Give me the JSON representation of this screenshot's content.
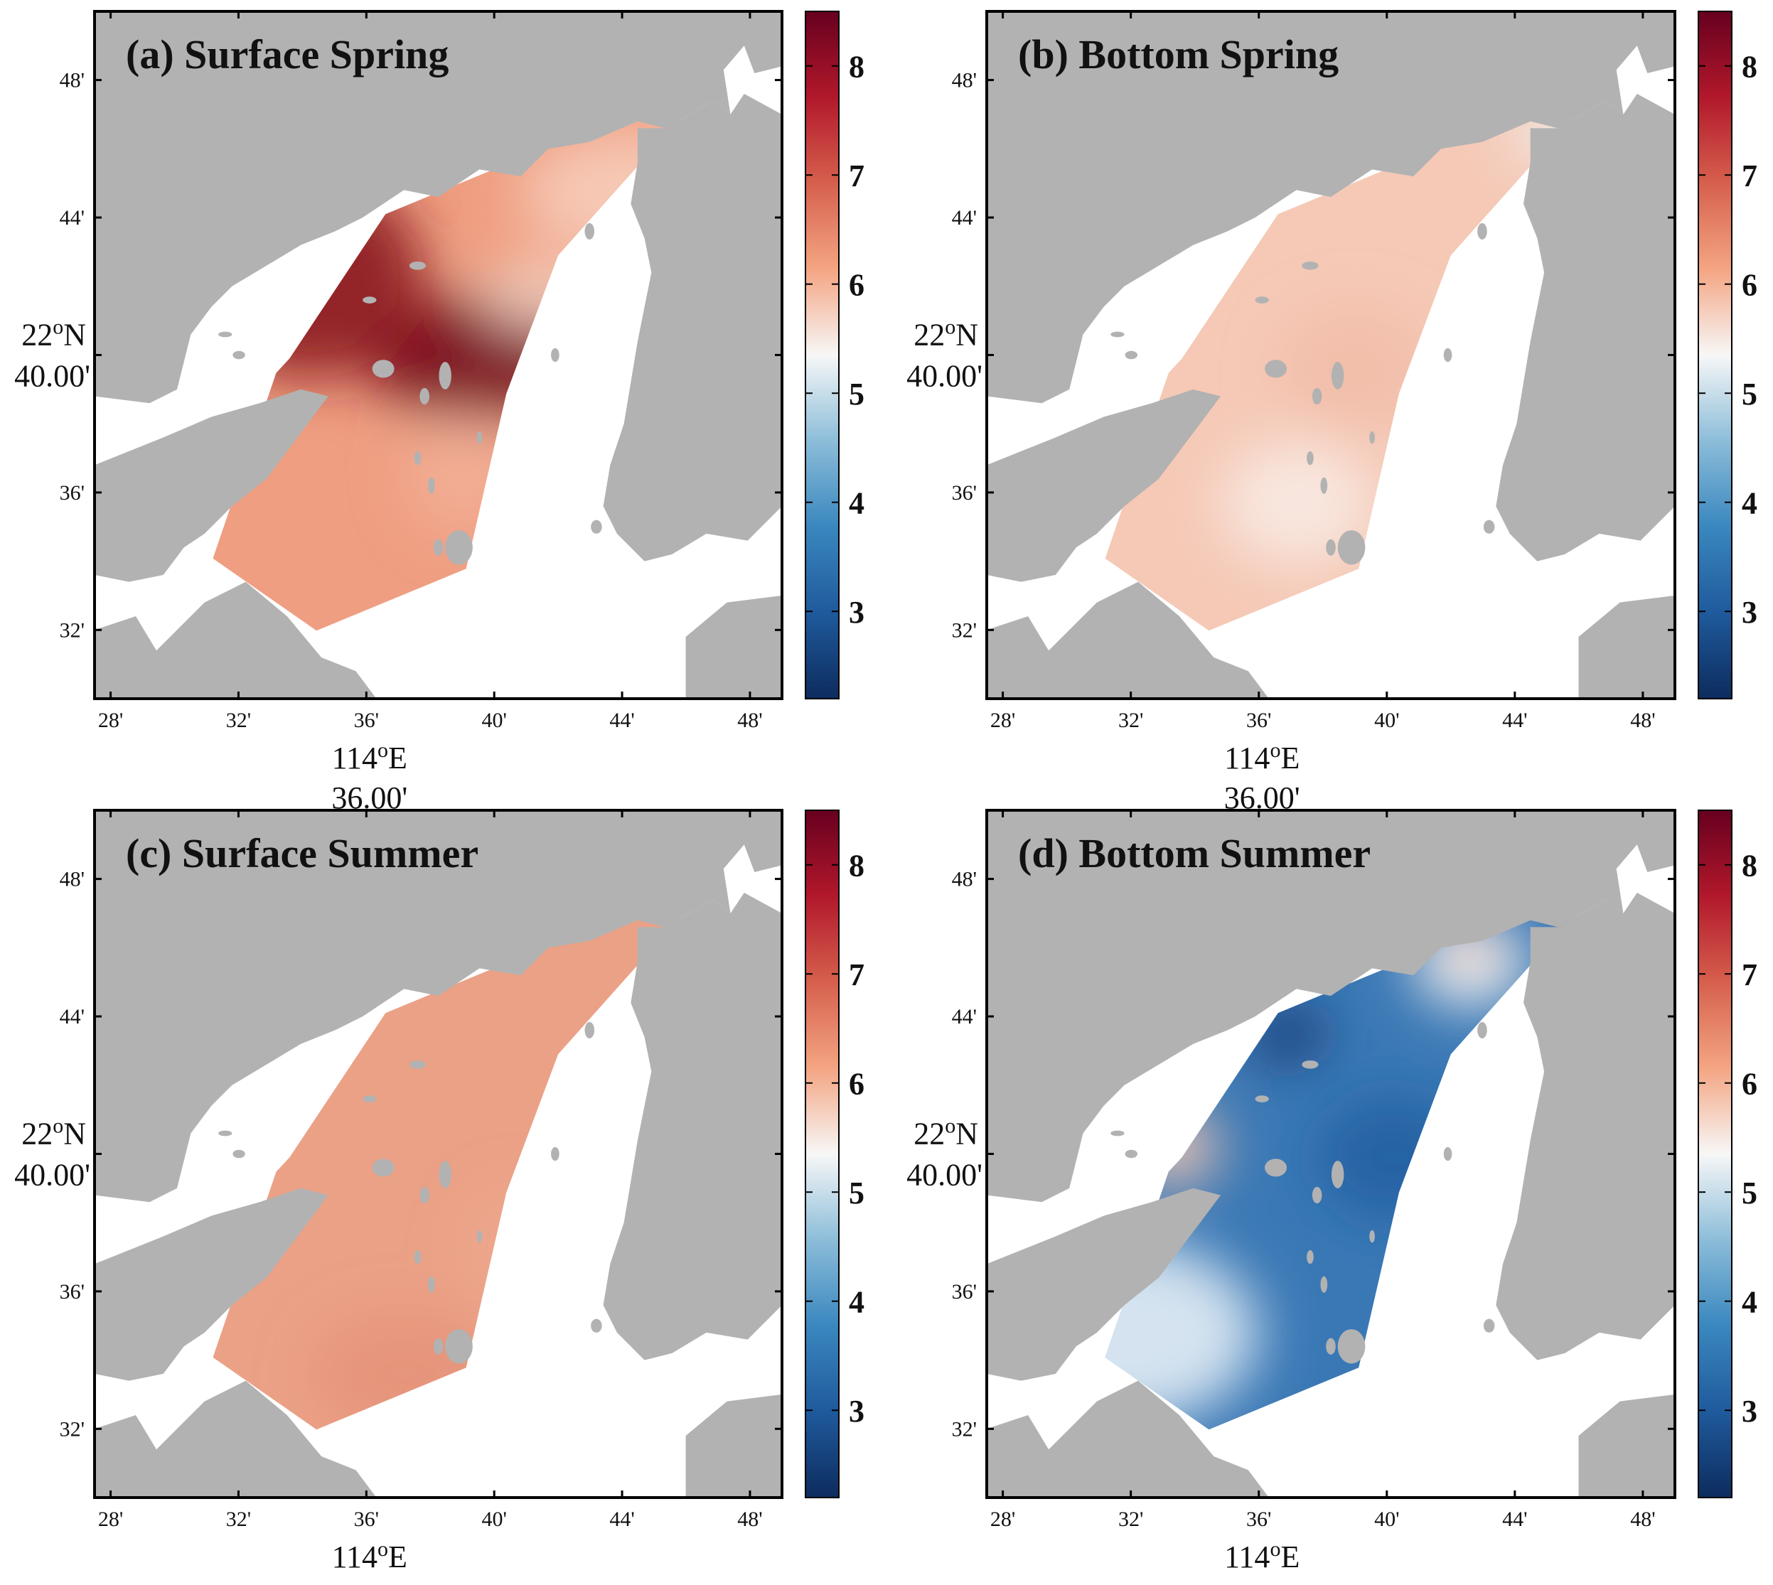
{
  "panels": [
    {
      "id": "a",
      "title": "(a) Surface Spring",
      "palette": {
        "base": "#ef9e81",
        "spots": [
          {
            "x": 114.66,
            "y": 22.665,
            "rx": 0.06,
            "ry": 0.03,
            "color": "#7a0e1c",
            "op": 0.95
          },
          {
            "x": 114.57,
            "y": 22.705,
            "rx": 0.06,
            "ry": 0.05,
            "color": "#8e1a24",
            "op": 0.95
          },
          {
            "x": 114.69,
            "y": 22.695,
            "rx": 0.03,
            "ry": 0.018,
            "color": "#f4d7c8",
            "op": 0.8
          },
          {
            "x": 114.74,
            "y": 22.745,
            "rx": 0.06,
            "ry": 0.03,
            "color": "#f7d3c2",
            "op": 0.8
          },
          {
            "x": 114.65,
            "y": 22.61,
            "rx": 0.03,
            "ry": 0.03,
            "color": "#f3b8a0",
            "op": 0.6
          }
        ]
      }
    },
    {
      "id": "b",
      "title": "(b) Bottom Spring",
      "palette": {
        "base": "#f5c9b6",
        "spots": [
          {
            "x": 114.62,
            "y": 22.595,
            "rx": 0.04,
            "ry": 0.03,
            "color": "#f8eae3",
            "op": 0.9
          },
          {
            "x": 114.65,
            "y": 22.66,
            "rx": 0.04,
            "ry": 0.03,
            "color": "#f0b8a3",
            "op": 0.6
          },
          {
            "x": 114.76,
            "y": 22.775,
            "rx": 0.03,
            "ry": 0.015,
            "color": "#eef1f2",
            "op": 0.8
          }
        ]
      }
    },
    {
      "id": "c",
      "title": "(c) Surface Summer",
      "palette": {
        "base": "#eba186",
        "spots": [
          {
            "x": 114.62,
            "y": 22.56,
            "rx": 0.05,
            "ry": 0.03,
            "color": "#e28a70",
            "op": 0.5
          },
          {
            "x": 114.68,
            "y": 22.62,
            "rx": 0.03,
            "ry": 0.03,
            "color": "#efaf95",
            "op": 0.4
          }
        ]
      }
    },
    {
      "id": "d",
      "title": "(d) Bottom Summer",
      "palette": {
        "base": "#3a78b5",
        "spots": [
          {
            "x": 114.53,
            "y": 22.58,
            "rx": 0.07,
            "ry": 0.045,
            "color": "#dce9f2",
            "op": 0.95
          },
          {
            "x": 114.555,
            "y": 22.67,
            "rx": 0.025,
            "ry": 0.02,
            "color": "#f4c7b2",
            "op": 0.9
          },
          {
            "x": 114.71,
            "y": 22.76,
            "rx": 0.03,
            "ry": 0.022,
            "color": "#f3f2f1",
            "op": 0.95
          },
          {
            "x": 114.71,
            "y": 22.768,
            "rx": 0.013,
            "ry": 0.007,
            "color": "#f1a788",
            "op": 0.95
          },
          {
            "x": 114.615,
            "y": 22.725,
            "rx": 0.02,
            "ry": 0.015,
            "color": "#163c75",
            "op": 0.9
          },
          {
            "x": 114.67,
            "y": 22.665,
            "rx": 0.04,
            "ry": 0.03,
            "color": "#1f5a9c",
            "op": 0.7
          }
        ]
      }
    }
  ],
  "axes": {
    "xticks": [
      "28'",
      "32'",
      "36'",
      "40'",
      "44'",
      "48'"
    ],
    "yticks": [
      "32'",
      "36'",
      "40'",
      "44'",
      "48'"
    ],
    "xlabel_deg": "114",
    "xlabel_dir": "E",
    "xlabel_min": "36.00'",
    "ylabel_deg": "22",
    "ylabel_dir": "N",
    "ylabel_min": "40.00'",
    "degree_symbol": "o"
  },
  "colorbar": {
    "ticks": [
      "3",
      "4",
      "5",
      "6",
      "7",
      "8"
    ],
    "range": [
      2.2,
      8.5
    ],
    "colors": [
      "#0d2c5e",
      "#1f5a9c",
      "#3a87bf",
      "#8cbdd9",
      "#f7f7f7",
      "#f4a582",
      "#d6604d",
      "#b2182b",
      "#67001f"
    ]
  },
  "map_colors": {
    "land": "#b2b2b2",
    "water": "#ffffff"
  },
  "chart_data": {
    "type": "heatmap",
    "x_range_lon": [
      114.4583,
      114.8167
    ],
    "y_range_lat": [
      22.5,
      22.8333
    ],
    "survey_polygon": [
      [
        114.52,
        22.568
      ],
      [
        114.574,
        22.533
      ],
      [
        114.652,
        22.563
      ],
      [
        114.673,
        22.648
      ],
      [
        114.7,
        22.715
      ],
      [
        114.77,
        22.788
      ],
      [
        114.688,
        22.765
      ],
      [
        114.61,
        22.735
      ],
      [
        114.56,
        22.665
      ],
      [
        114.553,
        22.658
      ]
    ]
  }
}
